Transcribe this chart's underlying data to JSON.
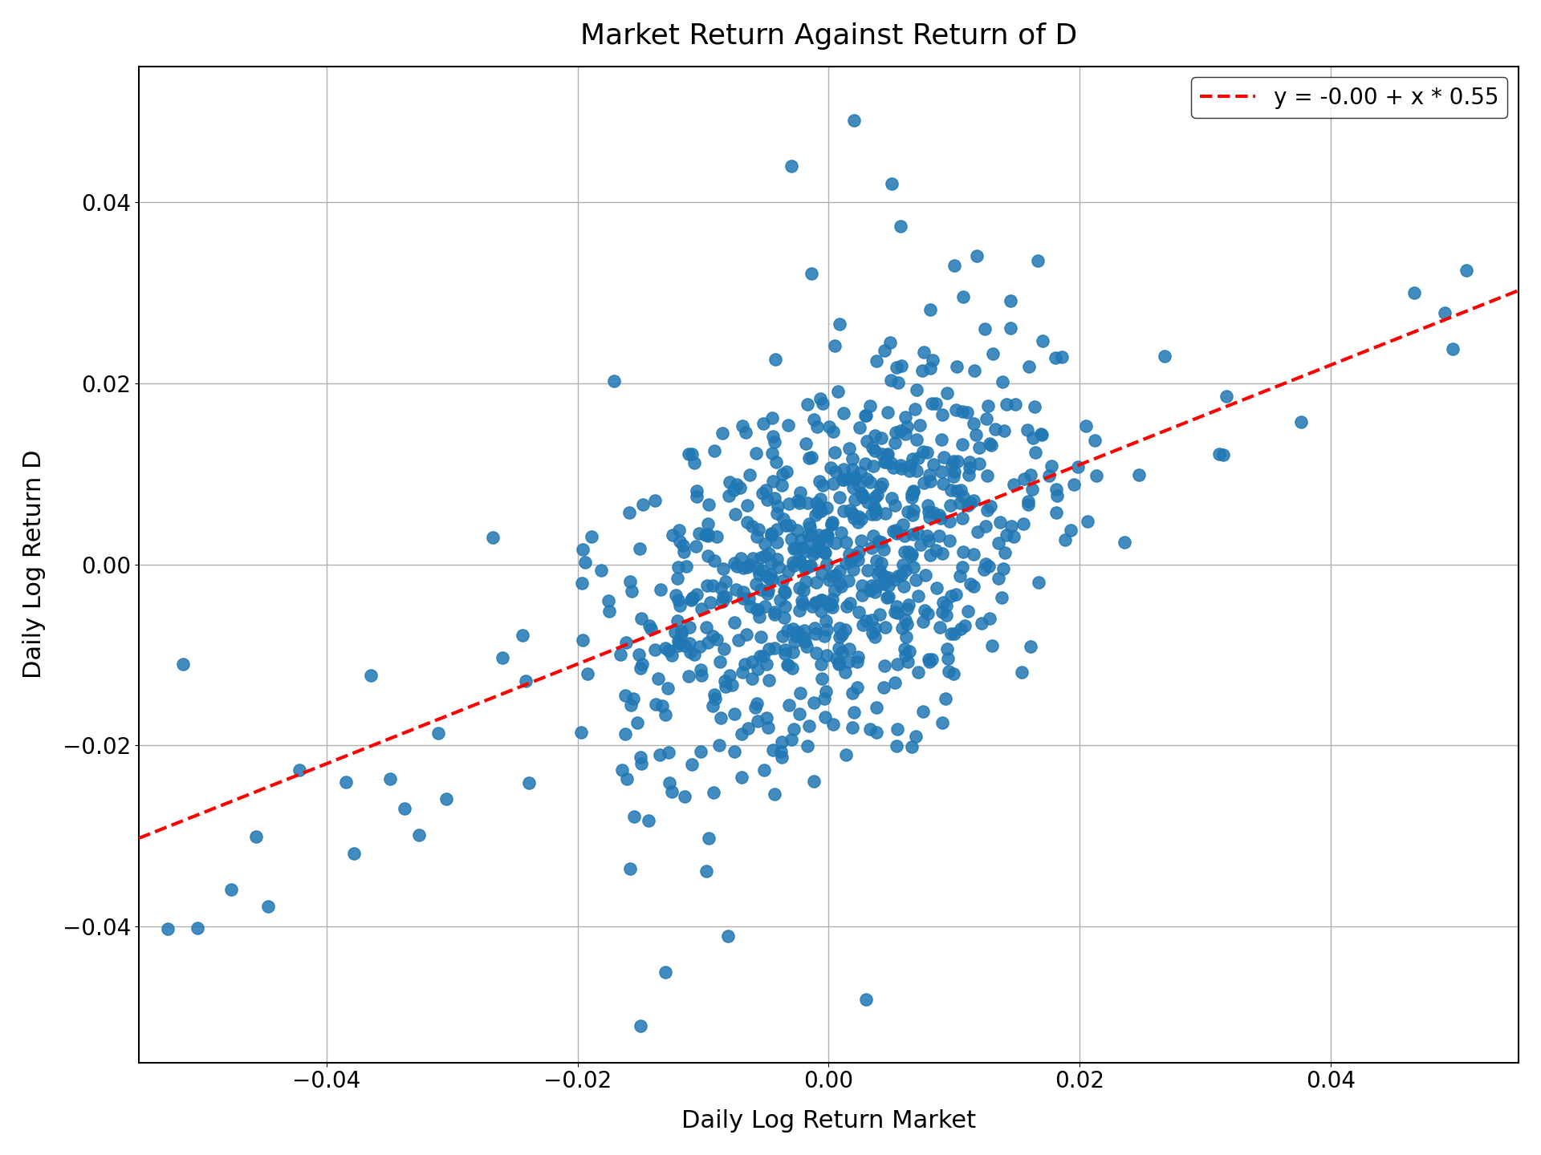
{
  "title": "Market Return Against Return of D",
  "xlabel": "Daily Log Return Market",
  "ylabel": "Daily Log Return D",
  "legend_label": "y = -0.00 + x * 0.55",
  "intercept": -0.0,
  "slope": 0.55,
  "xlim": [
    -0.055,
    0.055
  ],
  "ylim": [
    -0.055,
    0.055
  ],
  "dot_color": "#1f77b4",
  "line_color": "#ff0000",
  "background_color": "#ffffff",
  "grid_color": "#b0b0b0",
  "title_fontsize": 26,
  "label_fontsize": 22,
  "tick_fontsize": 20,
  "legend_fontsize": 20,
  "dot_size": 120,
  "dot_alpha": 0.85,
  "seed": 7,
  "n_points": 750
}
